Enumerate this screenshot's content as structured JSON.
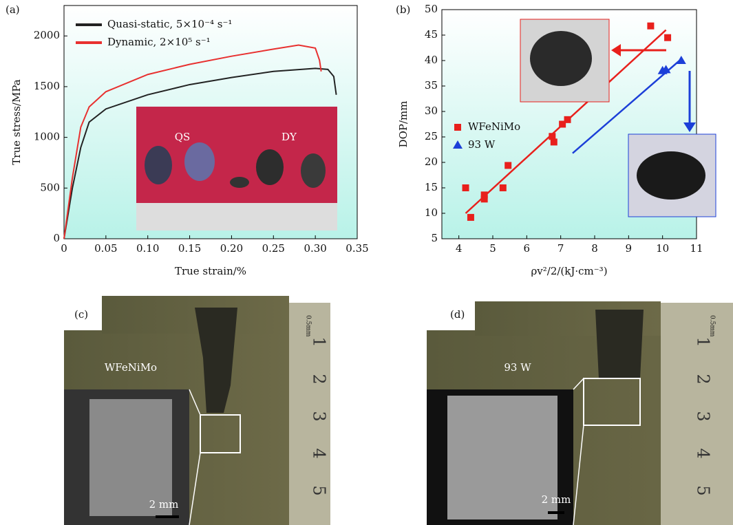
{
  "chart_data": [
    {
      "type": "line",
      "label": "(a)",
      "xlabel": "True strain/%",
      "ylabel": "True stress/MPa",
      "xlim": [
        0,
        0.35
      ],
      "ylim": [
        0,
        2300
      ],
      "xticks": [
        0,
        0.05,
        {
          "value": 0.1,
          "label": "0.10"
        },
        0.15,
        {
          "value": 0.2,
          "label": "0.20"
        },
        0.25,
        {
          "value": 0.3,
          "label": "0.30"
        },
        0.35
      ],
      "yticks": [
        0,
        500,
        1000,
        1500,
        2000
      ],
      "legend": "upper left",
      "annotations": [
        "QS",
        "DY"
      ],
      "series": [
        {
          "name": "Quasi-static, 5×10⁻⁴ s⁻¹",
          "color": "#222222",
          "x": [
            0,
            0.01,
            0.02,
            0.03,
            0.05,
            0.1,
            0.15,
            0.2,
            0.25,
            0.3,
            0.315,
            0.322,
            0.325
          ],
          "values": [
            0,
            500,
            900,
            1150,
            1280,
            1420,
            1520,
            1590,
            1650,
            1680,
            1670,
            1600,
            1420
          ]
        },
        {
          "name": "Dynamic, 2×10⁵ s⁻¹",
          "color": "#e8302f",
          "x": [
            0,
            0.01,
            0.02,
            0.03,
            0.05,
            0.1,
            0.15,
            0.2,
            0.25,
            0.28,
            0.3,
            0.305,
            0.307
          ],
          "values": [
            0,
            600,
            1100,
            1300,
            1450,
            1620,
            1720,
            1800,
            1870,
            1910,
            1880,
            1760,
            1650
          ]
        }
      ]
    },
    {
      "type": "scatter",
      "label": "(b)",
      "xlabel": "ρv²/2/(kJ·cm⁻³)",
      "ylabel": "DOP/mm",
      "xlim": [
        3.5,
        11
      ],
      "ylim": [
        5,
        50
      ],
      "xticks": [
        4,
        5,
        6,
        7,
        8,
        9,
        10,
        11
      ],
      "yticks": [
        5,
        10,
        15,
        20,
        25,
        30,
        35,
        40,
        45,
        50
      ],
      "legend": "center left",
      "series": [
        {
          "name": "WFeNiMo",
          "color": "#e8201c",
          "marker": "square",
          "x": [
            4.2,
            4.35,
            4.75,
            4.75,
            5.3,
            5.45,
            6.75,
            6.8,
            7.05,
            7.2,
            9.65,
            10.15
          ],
          "values": [
            15,
            9.2,
            12.8,
            13.6,
            15,
            19.4,
            25.1,
            24,
            27.5,
            28.4,
            46.8,
            44.5
          ],
          "fit": {
            "x": [
              4.2,
              10.1
            ],
            "y": [
              10,
              46
            ]
          }
        },
        {
          "name": "93 W",
          "color": "#1c3fd8",
          "marker": "triangle",
          "x": [
            10,
            10.1,
            10.55
          ],
          "values": [
            38,
            38.2,
            40
          ],
          "fit": {
            "x": [
              7.35,
              10.5
            ],
            "y": [
              21.8,
              40
            ]
          }
        }
      ]
    }
  ],
  "panels": [
    {
      "label": "(c)",
      "text": "WFeNiMo",
      "scale": "2 mm",
      "unit": "0.5mm",
      "ruler": [
        "1",
        "2",
        "3",
        "4",
        "5"
      ]
    },
    {
      "label": "(d)",
      "text": "93 W",
      "scale": "2 mm",
      "unit": "0.5mm",
      "ruler": [
        "1",
        "2",
        "3",
        "4",
        "5"
      ]
    }
  ]
}
